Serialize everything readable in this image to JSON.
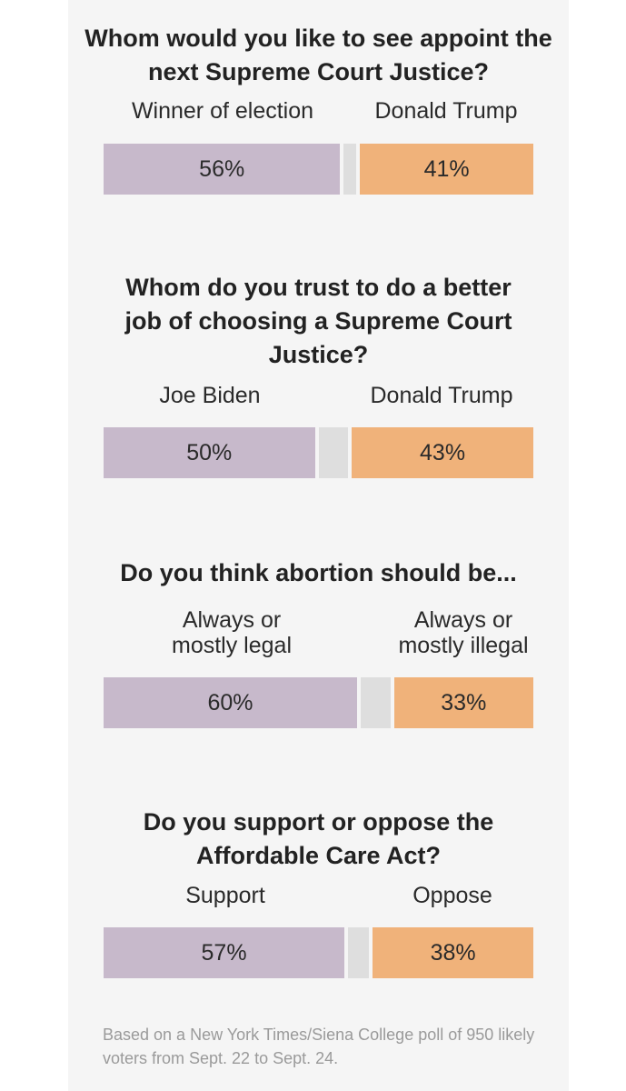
{
  "chart_data": [
    {
      "type": "bar",
      "title": "Whom would you like to see appoint the next Supreme Court Justice?",
      "categories": [
        "Winner of election",
        "Donald Trump"
      ],
      "values": [
        56,
        41
      ],
      "value_labels": [
        "56%",
        "41%"
      ]
    },
    {
      "type": "bar",
      "title": "Whom do you trust to do a better job of choosing a Supreme Court Justice?",
      "categories": [
        "Joe Biden",
        "Donald Trump"
      ],
      "values": [
        50,
        43
      ],
      "value_labels": [
        "50%",
        "43%"
      ]
    },
    {
      "type": "bar",
      "title": "Do you think abortion should be...",
      "categories": [
        "Always or mostly legal",
        "Always or mostly illegal"
      ],
      "values": [
        60,
        33
      ],
      "value_labels": [
        "60%",
        "33%"
      ]
    },
    {
      "type": "bar",
      "title": "Do you support or oppose the Affordable Care Act?",
      "categories": [
        "Support",
        "Oppose"
      ],
      "values": [
        57,
        38
      ],
      "value_labels": [
        "57%",
        "38%"
      ]
    }
  ],
  "colors": {
    "left": "#c7b9cb",
    "neutral": "#dedede",
    "right": "#f0b27a"
  },
  "footnote": "Based on a New York Times/Siena College poll of 950 likely voters from Sept. 22 to Sept. 24."
}
